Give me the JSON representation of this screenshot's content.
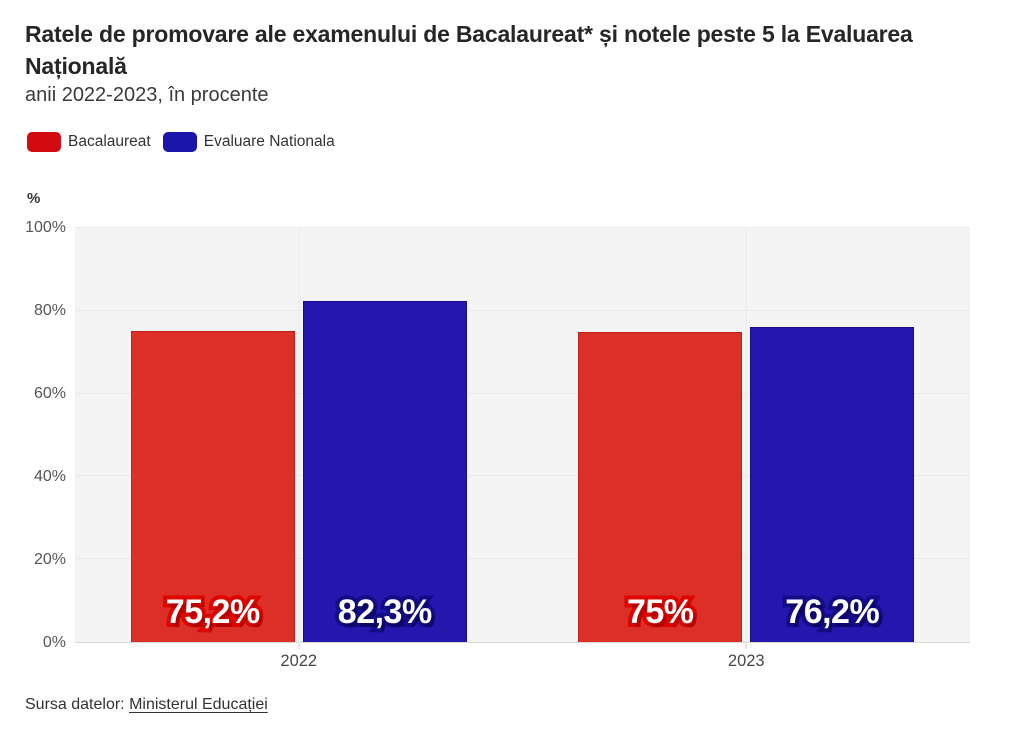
{
  "header": {
    "title": "Ratele de promovare ale examenului de Bacalaureat* și notele peste 5 la Evaluarea Națională",
    "subtitle": "anii 2022-2023, în procente"
  },
  "legend": {
    "items": [
      {
        "label": "Bacalaureat",
        "color": "#d20b11"
      },
      {
        "label": "Evaluare Nationala",
        "color": "#1c15a9"
      }
    ]
  },
  "chart_data": {
    "type": "bar",
    "title": "Ratele de promovare ale examenului de Bacalaureat* și notele peste 5 la Evaluarea Națională",
    "subtitle": "anii 2022-2023, în procente",
    "ylabel": "%",
    "xlabel": "",
    "categories": [
      "2022",
      "2023"
    ],
    "series": [
      {
        "name": "Bacalaureat",
        "values": [
          75.2,
          75.0
        ],
        "display_labels": [
          "75,2%",
          "75%"
        ],
        "bar_color": "#dc2f27",
        "bar_edge_color": "#c3211b",
        "label_outline_color": "#de0400",
        "label_shadow_color": "#b50301"
      },
      {
        "name": "Evaluare Nationala",
        "values": [
          82.3,
          76.2
        ],
        "display_labels": [
          "82,3%",
          "76,2%"
        ],
        "bar_color": "#2417ad",
        "bar_edge_color": "#170e86",
        "label_outline_color": "#140b87",
        "label_shadow_color": "#0c0667"
      }
    ],
    "ylim": [
      0,
      100
    ],
    "yticks": [
      {
        "value": 0,
        "label": "0%"
      },
      {
        "value": 20,
        "label": "20%"
      },
      {
        "value": 40,
        "label": "40%"
      },
      {
        "value": 60,
        "label": "60%"
      },
      {
        "value": 80,
        "label": "80%"
      },
      {
        "value": 100,
        "label": "100%"
      }
    ],
    "category_centers_pct": [
      25,
      75
    ],
    "grid": true,
    "legend_position": "top-left"
  },
  "footer": {
    "source_prefix": "Sursa datelor: ",
    "source_link_text": "Ministerul Educației"
  }
}
